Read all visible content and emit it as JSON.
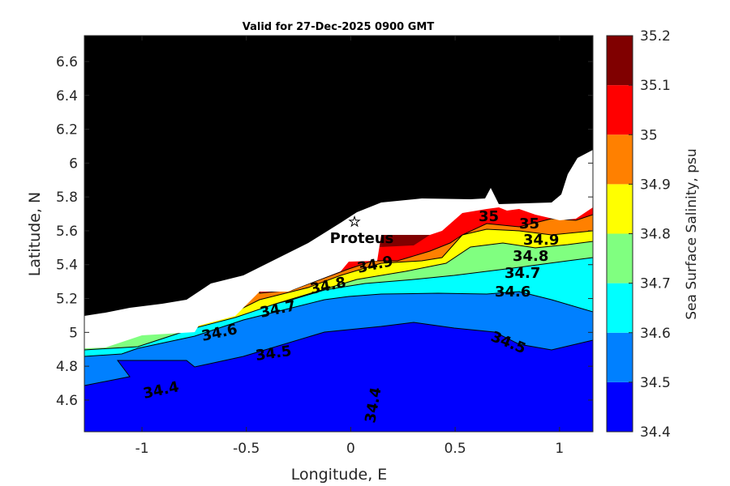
{
  "chart_data": {
    "type": "heatmap",
    "subtype": "filled-contour map",
    "title": "Valid for 27-Dec-2025 0900 GMT",
    "xlabel": "Longitude, E",
    "ylabel": "Latitude, N",
    "xlim": [
      -1.276,
      1.16
    ],
    "ylim": [
      4.413,
      6.753
    ],
    "xticks": [
      -1,
      -0.5,
      0,
      0.5,
      1
    ],
    "xtick_labels": [
      "-1",
      "-0.5",
      "0",
      "0.5",
      "1"
    ],
    "yticks": [
      4.6,
      4.8,
      5,
      5.2,
      5.4,
      5.6,
      5.8,
      6,
      6.2,
      6.4,
      6.6
    ],
    "ytick_labels": [
      "4.6",
      "4.8",
      "5",
      "5.2",
      "5.4",
      "5.6",
      "5.8",
      "6",
      "6.2",
      "6.4",
      "6.6"
    ],
    "colorbar": {
      "label": "Sea Surface Salinity, psu",
      "levels": [
        34.4,
        34.5,
        34.6,
        34.7,
        34.8,
        34.9,
        35,
        35.1,
        35.2
      ],
      "tick_labels": [
        "34.4",
        "34.5",
        "34.6",
        "34.7",
        "34.8",
        "34.9",
        "35",
        "35.1",
        "35.2"
      ],
      "colors": [
        "#0000ff",
        "#0080ff",
        "#00ffff",
        "#80ff80",
        "#ffff00",
        "#ff8000",
        "#ff0000",
        "#800000"
      ]
    },
    "contour_labels": [
      "34.4",
      "34.4",
      "34.5",
      "34.5",
      "34.6",
      "34.6",
      "34.7",
      "34.7",
      "34.8",
      "34.8",
      "34.9",
      "34.9",
      "35",
      "35"
    ],
    "land_color": "#000000",
    "annotations": [
      {
        "label": "Proteus",
        "marker": "star",
        "lon": 0.02,
        "lat": 5.64
      }
    ]
  }
}
